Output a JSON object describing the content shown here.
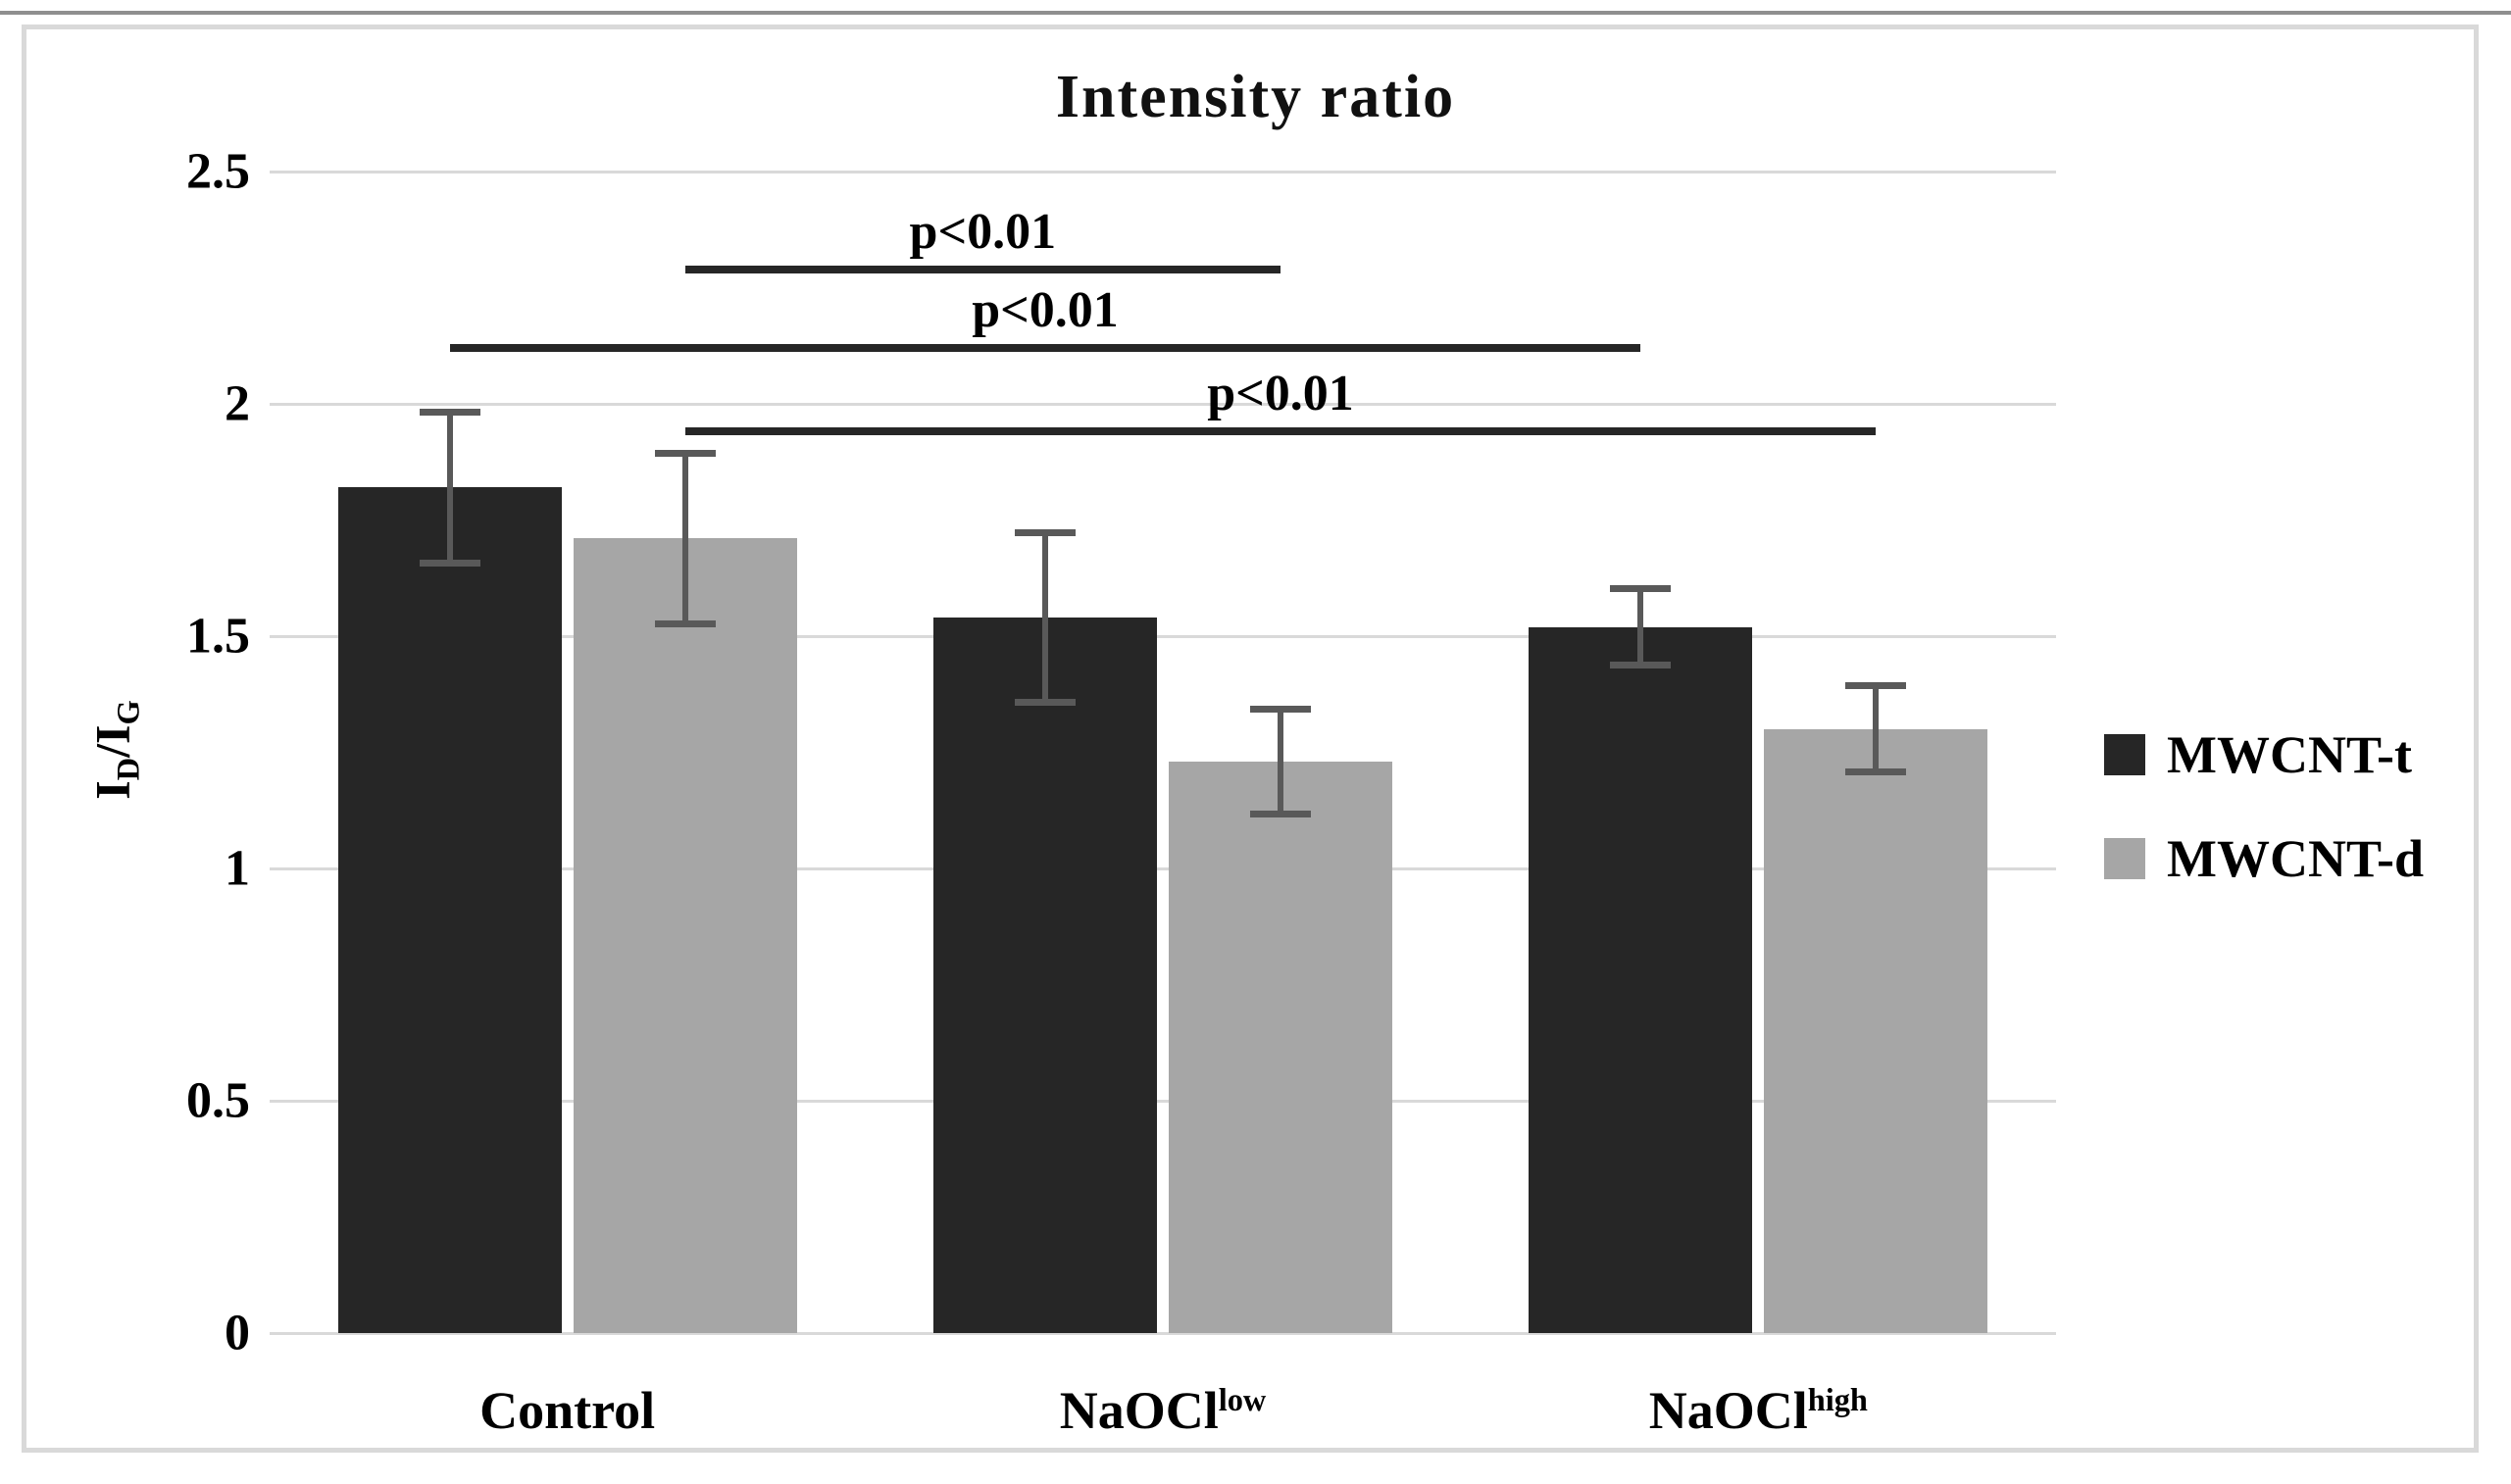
{
  "chart_data": {
    "type": "bar",
    "title": "Intensity ratio",
    "ylabel": {
      "i1": "I",
      "s1": "D",
      "slash": "/",
      "i2": "I",
      "s2": "G"
    },
    "categories": [
      {
        "id": "control",
        "base": "Control",
        "sup": ""
      },
      {
        "id": "naocl-low",
        "base": "NaOCl",
        "sup": "low"
      },
      {
        "id": "naocl-high",
        "base": "NaOCl",
        "sup": "high"
      }
    ],
    "series": [
      {
        "name": "MWCNT-t",
        "color": "#262626",
        "values": [
          1.82,
          1.54,
          1.52
        ],
        "errors": [
          0.17,
          0.19,
          0.09
        ]
      },
      {
        "name": "MWCNT-d",
        "color": "#a6a6a6",
        "values": [
          1.71,
          1.23,
          1.3
        ],
        "errors": [
          0.19,
          0.12,
          0.1
        ]
      }
    ],
    "y_ticks": [
      {
        "value": 2.5,
        "label": "2.5"
      },
      {
        "value": 2,
        "label": "2"
      },
      {
        "value": 1.5,
        "label": "1.5"
      },
      {
        "value": 1,
        "label": "1"
      },
      {
        "value": 0.5,
        "label": "0.5"
      },
      {
        "value": 0,
        "label": "0"
      }
    ],
    "ylim": [
      0,
      2.5
    ],
    "grid": true,
    "legend_position": "right",
    "significance": [
      {
        "label": "p<0.01",
        "from": {
          "series": "MWCNT-d",
          "category": "control"
        },
        "to": {
          "series": "MWCNT-d",
          "category": "naocl-low"
        },
        "y": 2.29
      },
      {
        "label": "p<0.01",
        "from": {
          "series": "MWCNT-t",
          "category": "control"
        },
        "to": {
          "series": "MWCNT-t",
          "category": "naocl-high"
        },
        "y": 2.12
      },
      {
        "label": "p<0.01",
        "from": {
          "series": "MWCNT-d",
          "category": "control"
        },
        "to": {
          "series": "MWCNT-d",
          "category": "naocl-high"
        },
        "y": 1.94
      }
    ],
    "colors": {
      "grid": "#d9d9d9",
      "error_bar": "#595959",
      "bracket": "#262626",
      "text": "#000000"
    }
  }
}
